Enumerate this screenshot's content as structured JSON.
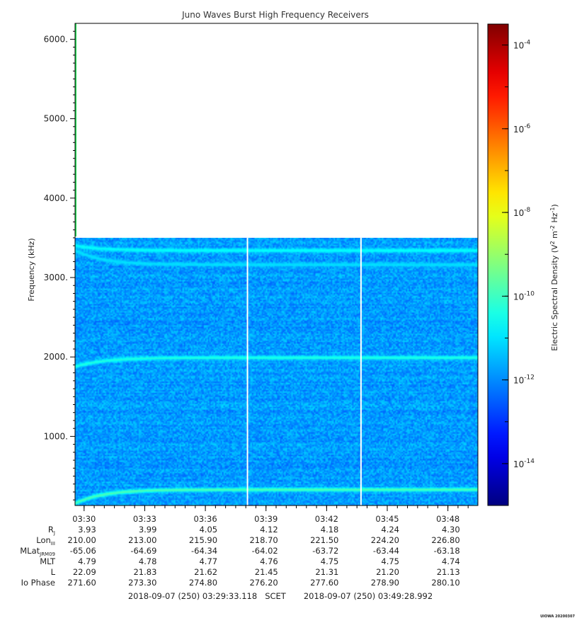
{
  "chart_data": {
    "type": "heatmap",
    "title": "Juno Waves Burst High Frequency Receivers",
    "ylabel": "Frequency (kHz)",
    "ylim": [
      130,
      6200
    ],
    "y_ticks": [
      {
        "value": 1000,
        "label": "1000."
      },
      {
        "value": 2000,
        "label": "2000."
      },
      {
        "value": 3000,
        "label": "3000."
      },
      {
        "value": 4000,
        "label": "4000."
      },
      {
        "value": 5000,
        "label": "5000."
      },
      {
        "value": 6000,
        "label": "6000."
      }
    ],
    "x_start": "03:29:33.118",
    "x_end": "03:49:28.992",
    "x_ticks": [
      "03:30",
      "03:33",
      "03:36",
      "03:39",
      "03:42",
      "03:45",
      "03:48"
    ],
    "data_max_frequency": 3500,
    "colorbar": {
      "label_main": "Electric Spectral Density (V",
      "label_exp1": "2",
      "label_mid": " m",
      "label_exp2": "-2",
      "label_mid2": " Hz",
      "label_exp3": "-1",
      "label_end": ")",
      "log_range": [
        -15,
        -3.5
      ],
      "ticks": [
        {
          "exp": -14,
          "base": "10",
          "power": "-14"
        },
        {
          "exp": -12,
          "base": "10",
          "power": "-12"
        },
        {
          "exp": -10,
          "base": "10",
          "power": "-10"
        },
        {
          "exp": -8,
          "base": "10",
          "power": "-8"
        },
        {
          "exp": -6,
          "base": "10",
          "power": "-6"
        },
        {
          "exp": -4,
          "base": "10",
          "power": "-4"
        }
      ]
    },
    "background_level": -11.8,
    "emission_lines": [
      {
        "start_freq": 1880,
        "steady_freq": 1990,
        "level": -10.3
      },
      {
        "start_freq": 3400,
        "steady_freq": 3340,
        "level": -10.6
      },
      {
        "start_freq": 3340,
        "steady_freq": 3160,
        "level": -11.0
      },
      {
        "start_freq": 160,
        "steady_freq": 330,
        "level": -9.8
      }
    ],
    "data_gaps": [
      "03:38:05",
      "03:43:42"
    ],
    "ephemeris": {
      "rows": [
        {
          "name": "R",
          "sub": "J",
          "values": [
            "3.93",
            "3.99",
            "4.05",
            "4.12",
            "4.18",
            "4.24",
            "4.30"
          ]
        },
        {
          "name": "Lon",
          "sub": "III",
          "values": [
            "210.00",
            "213.00",
            "215.90",
            "218.70",
            "221.50",
            "224.20",
            "226.80"
          ]
        },
        {
          "name": "MLat",
          "sub": "JRM09",
          "values": [
            "-65.06",
            "-64.69",
            "-64.34",
            "-64.02",
            "-63.72",
            "-63.44",
            "-63.18"
          ]
        },
        {
          "name": "MLT",
          "sub": "",
          "values": [
            "4.79",
            "4.78",
            "4.77",
            "4.76",
            "4.75",
            "4.75",
            "4.74"
          ]
        },
        {
          "name": "L",
          "sub": "",
          "values": [
            "22.09",
            "21.83",
            "21.62",
            "21.45",
            "21.31",
            "21.20",
            "21.13"
          ]
        },
        {
          "name": "Io Phase",
          "sub": "",
          "values": [
            "271.60",
            "273.30",
            "274.80",
            "276.20",
            "277.60",
            "278.90",
            "280.10"
          ]
        }
      ]
    },
    "footer": {
      "start": "2018-09-07 (250) 03:29:33.118",
      "scet": "SCET",
      "end": "2018-09-07 (250) 03:49:28.992"
    },
    "stamp": "UIOWA 20200307"
  }
}
